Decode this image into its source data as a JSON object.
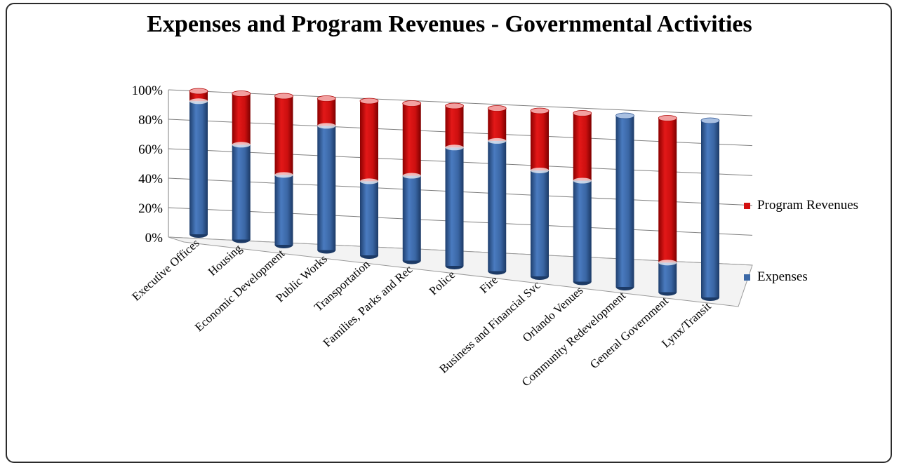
{
  "chart_data": {
    "type": "bar",
    "stacked": true,
    "percent_stacked": true,
    "title": "Expenses and Program Revenues - Governmental Activities",
    "categories": [
      "Executive Offices",
      "Housing",
      "Economic Development",
      "Public Works",
      "Transportation",
      "Families, Parks and Rec",
      "Police",
      "Fire",
      "Business and Financial Svc",
      "Orlando Venues",
      "Community Redevelopment",
      "General Government",
      "Lynx/Transit"
    ],
    "series": [
      {
        "name": "Expenses",
        "color": "#3B68A6",
        "values": [
          93,
          65,
          47,
          82,
          48,
          54,
          74,
          80,
          64,
          60,
          100,
          17,
          100
        ]
      },
      {
        "name": "Program Revenues",
        "color": "#D31010",
        "values": [
          7,
          35,
          53,
          18,
          52,
          46,
          26,
          20,
          36,
          40,
          0,
          83,
          0
        ]
      }
    ],
    "y_ticks": [
      "0%",
      "20%",
      "40%",
      "60%",
      "80%",
      "100%"
    ],
    "ylim": [
      0,
      100
    ],
    "legend_position": "right",
    "grid": true
  }
}
